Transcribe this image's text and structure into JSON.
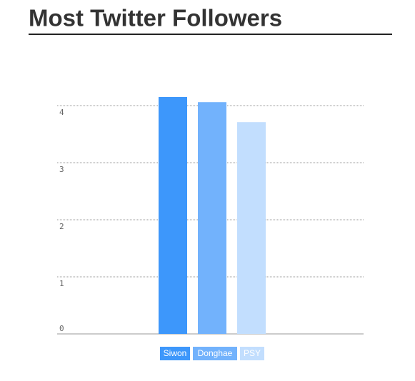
{
  "chart_data": {
    "type": "bar",
    "title": "Most Twitter Followers",
    "categories": [
      "Siwon",
      "Donghae",
      "PSY"
    ],
    "values": [
      4.15,
      4.06,
      3.71
    ],
    "colors": [
      "#3d97fb",
      "#72b2fc",
      "#c2defe"
    ],
    "ylim": [
      0,
      4
    ],
    "yticks": [
      0,
      1,
      2,
      3,
      4
    ],
    "grid": true
  }
}
